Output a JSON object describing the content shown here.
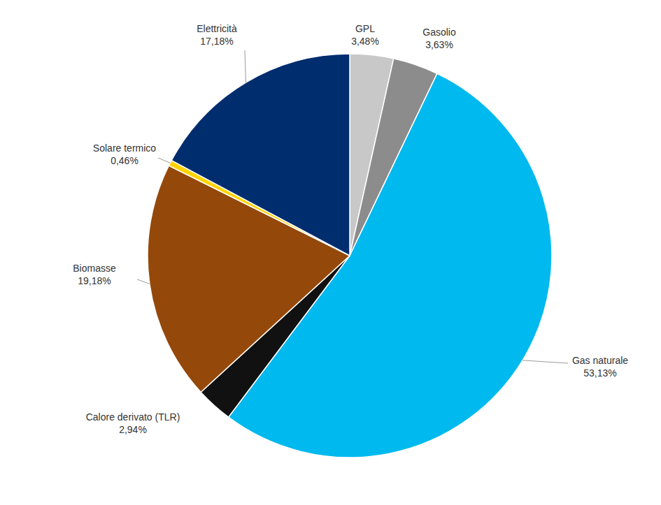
{
  "chart_data": {
    "type": "pie",
    "categories": [
      "GPL",
      "Gasolio",
      "Gas naturale",
      "Calore derivato (TLR)",
      "Biomasse",
      "Solare termico",
      "Elettricità"
    ],
    "values": [
      3.48,
      3.63,
      53.13,
      2.94,
      19.18,
      0.46,
      17.18
    ],
    "value_labels": [
      "3,48%",
      "3,63%",
      "53,13%",
      "2,94%",
      "19,18%",
      "0,46%",
      "17,18%"
    ],
    "colors": [
      "#c8c8c8",
      "#8c8c8c",
      "#00b9ee",
      "#111111",
      "#94490a",
      "#ffd400",
      "#002d6e"
    ],
    "data_labels": true
  }
}
